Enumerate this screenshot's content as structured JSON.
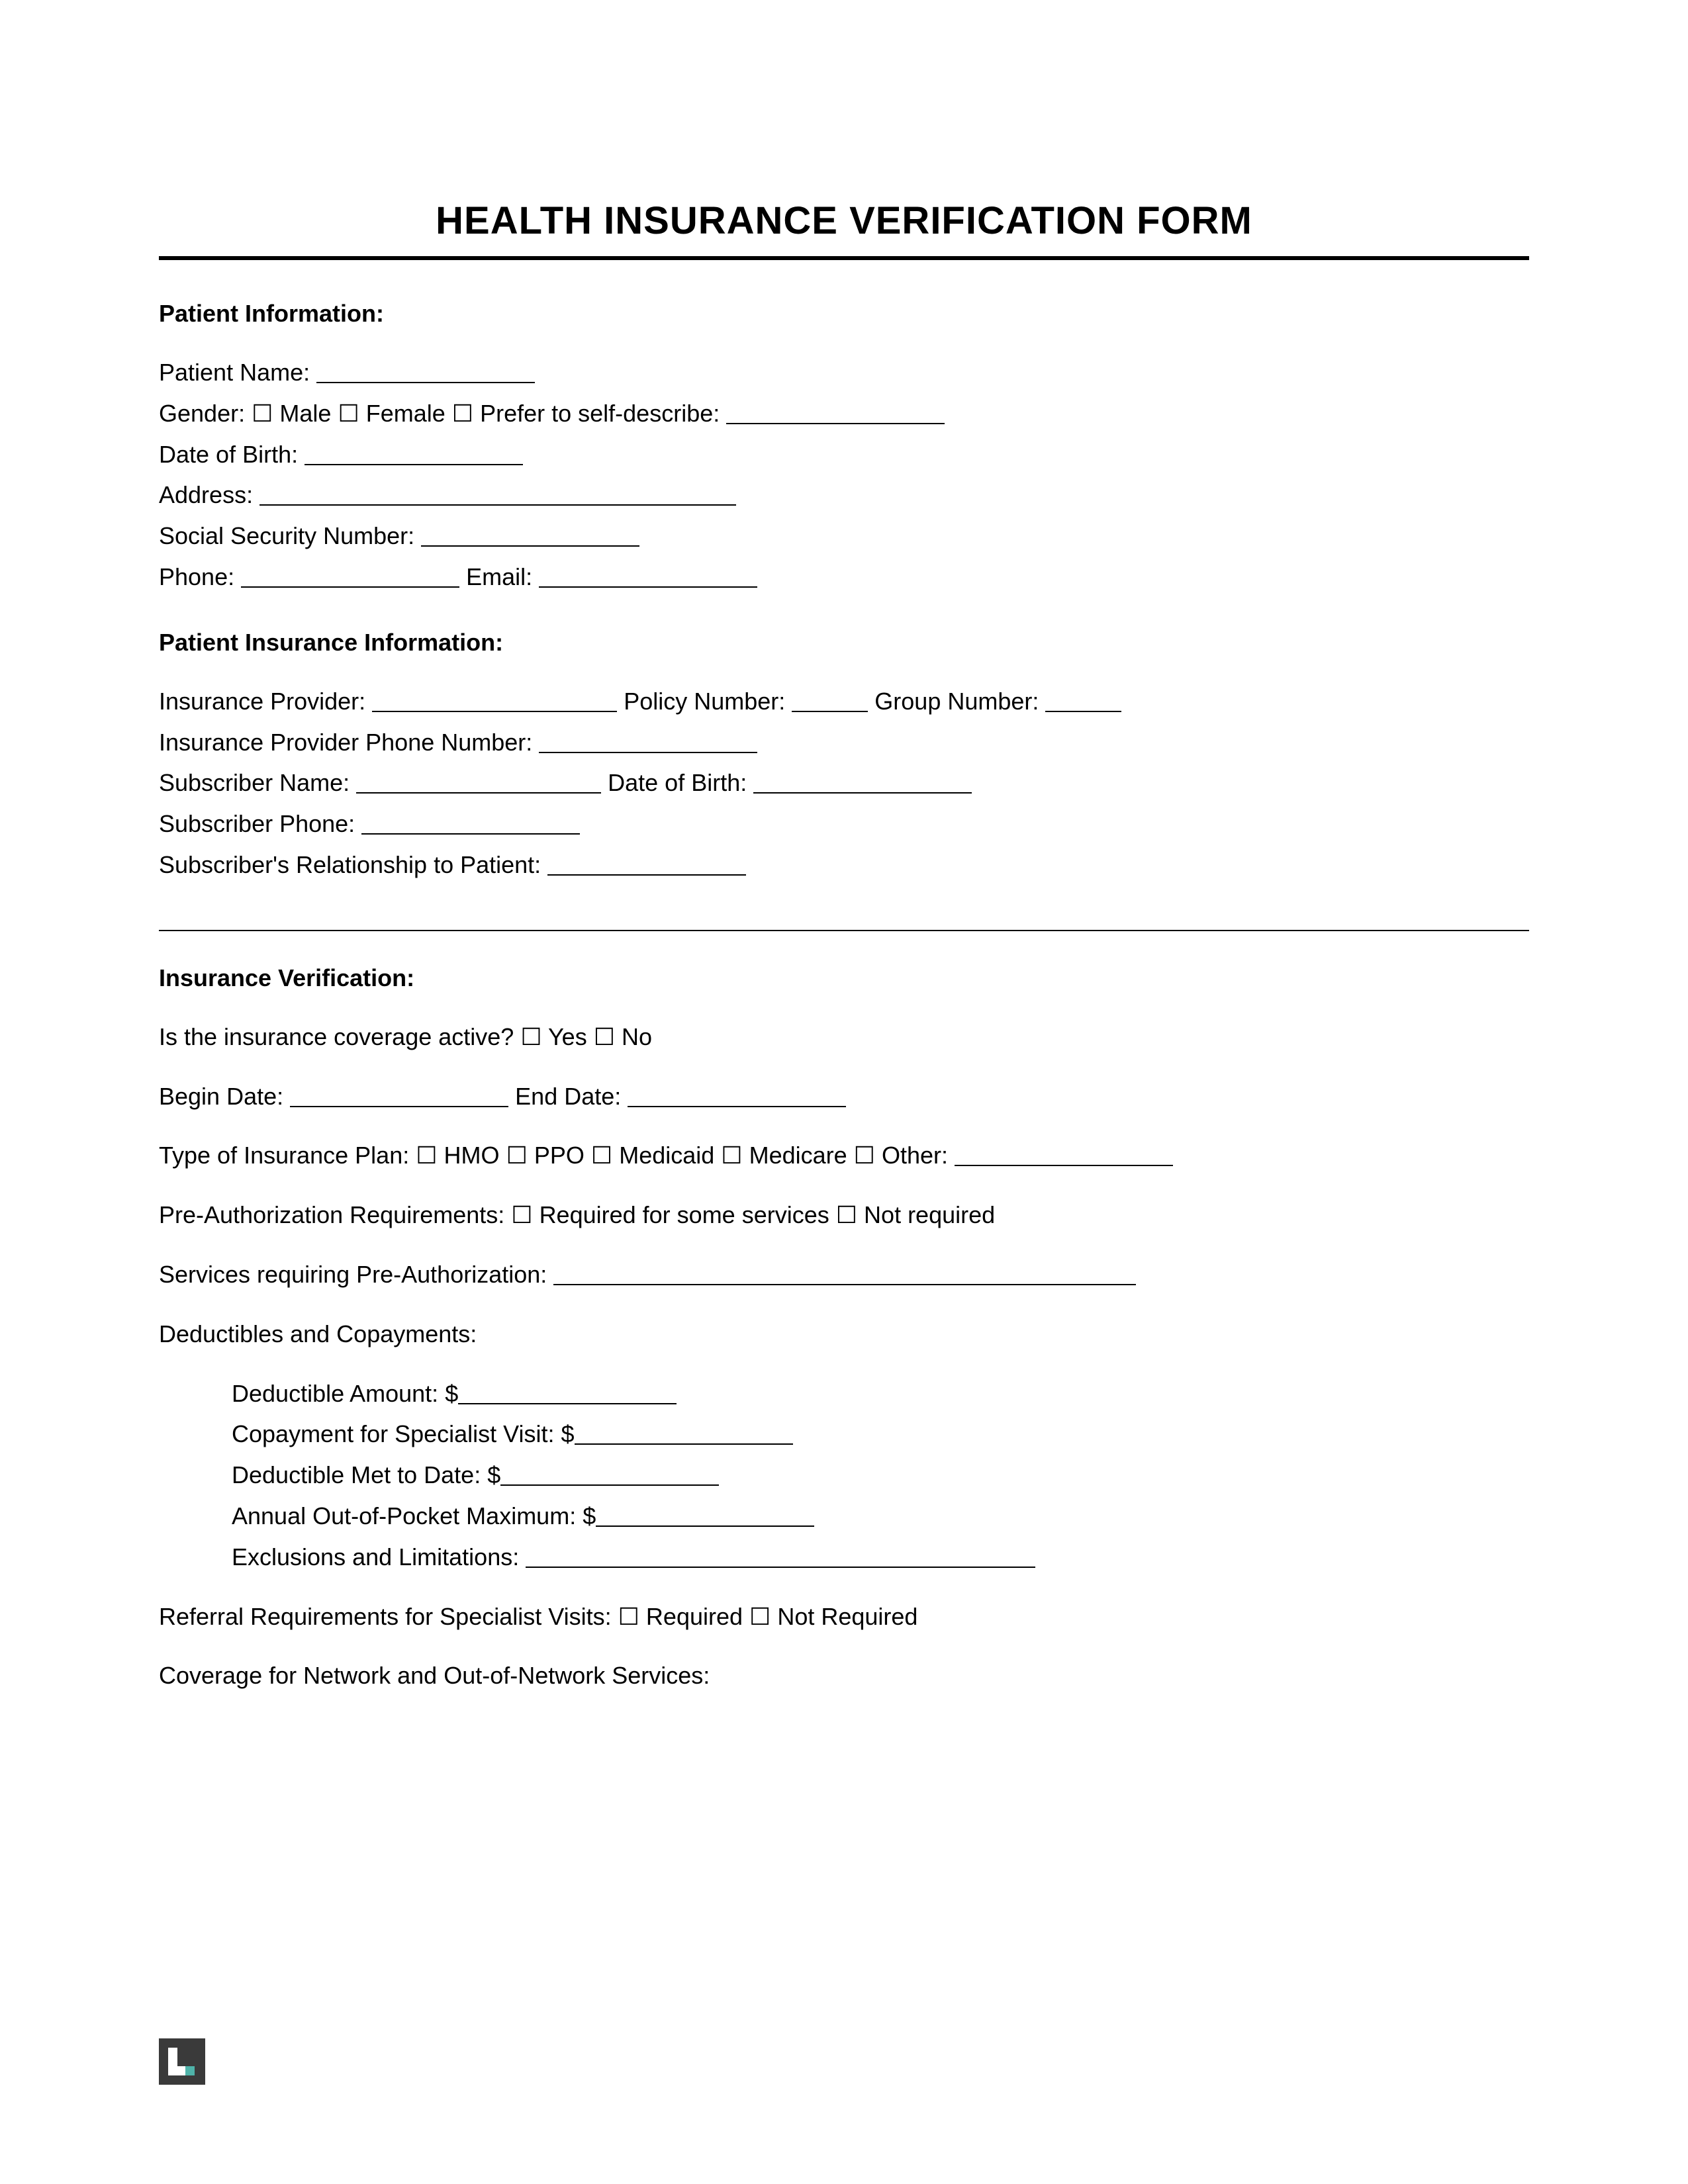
{
  "title": "HEALTH INSURANCE VERIFICATION FORM",
  "checkboxGlyph": "☐",
  "patientInfo": {
    "heading": "Patient Information:",
    "nameLabel": "Patient Name:",
    "genderLabel": "Gender:",
    "genderMale": "Male",
    "genderFemale": "Female",
    "genderSelfDescribe": "Prefer to self-describe:",
    "dobLabel": "Date of Birth:",
    "addressLabel": "Address:",
    "ssnLabel": "Social Security Number:",
    "phoneLabel": "Phone:",
    "emailLabel": "Email:"
  },
  "insuranceInfo": {
    "heading": "Patient Insurance Information:",
    "providerLabel": "Insurance Provider:",
    "policyLabel": "Policy Number:",
    "groupLabel": "Group Number:",
    "providerPhoneLabel": "Insurance Provider Phone Number:",
    "subscriberNameLabel": "Subscriber Name:",
    "subscriberDobLabel": "Date of Birth:",
    "subscriberPhoneLabel": "Subscriber Phone:",
    "relationshipLabel": "Subscriber's Relationship to Patient:"
  },
  "verification": {
    "heading": "Insurance Verification:",
    "activeLabel": "Is the insurance coverage active?",
    "yes": "Yes",
    "no": "No",
    "beginDateLabel": "Begin Date:",
    "endDateLabel": "End Date:",
    "planTypeLabel": "Type of Insurance Plan:",
    "hmo": "HMO",
    "ppo": "PPO",
    "medicaid": "Medicaid",
    "medicare": "Medicare",
    "other": "Other:",
    "preauthLabel": "Pre-Authorization Requirements:",
    "preauthRequired": "Required for some services",
    "preauthNotRequired": "Not required",
    "servicesPreauthLabel": "Services requiring Pre-Authorization:",
    "deductiblesHeading": "Deductibles and Copayments:",
    "deductibleAmount": "Deductible Amount: $",
    "copaySpecialist": "Copayment for Specialist Visit: $",
    "deductibleMet": "Deductible Met to Date: $",
    "oopMax": "Annual Out-of-Pocket Maximum: $",
    "exclusions": "Exclusions and Limitations:",
    "referralLabel": "Referral Requirements for Specialist Visits:",
    "referralRequired": "Required",
    "referralNotRequired": "Not Required",
    "coverageNetworkLabel": "Coverage for Network and Out-of-Network Services:"
  },
  "blankWidths": {
    "name": 330,
    "selfDescribe": 330,
    "dob": 330,
    "address": 720,
    "ssn": 330,
    "phone": 330,
    "email": 330,
    "provider": 370,
    "policy": 115,
    "group": 115,
    "providerPhone": 330,
    "subscriberName": 370,
    "subscriberDob": 330,
    "subscriberPhone": 330,
    "relationship": 300,
    "beginDate": 330,
    "endDate": 330,
    "other": 330,
    "servicesPreauth": 880,
    "deductibleAmount": 330,
    "copay": 330,
    "deductibleMet": 330,
    "oop": 330,
    "exclusions": 770
  },
  "logoColors": {
    "bg": "#3a3a3a",
    "accent": "#4fb3a9"
  }
}
